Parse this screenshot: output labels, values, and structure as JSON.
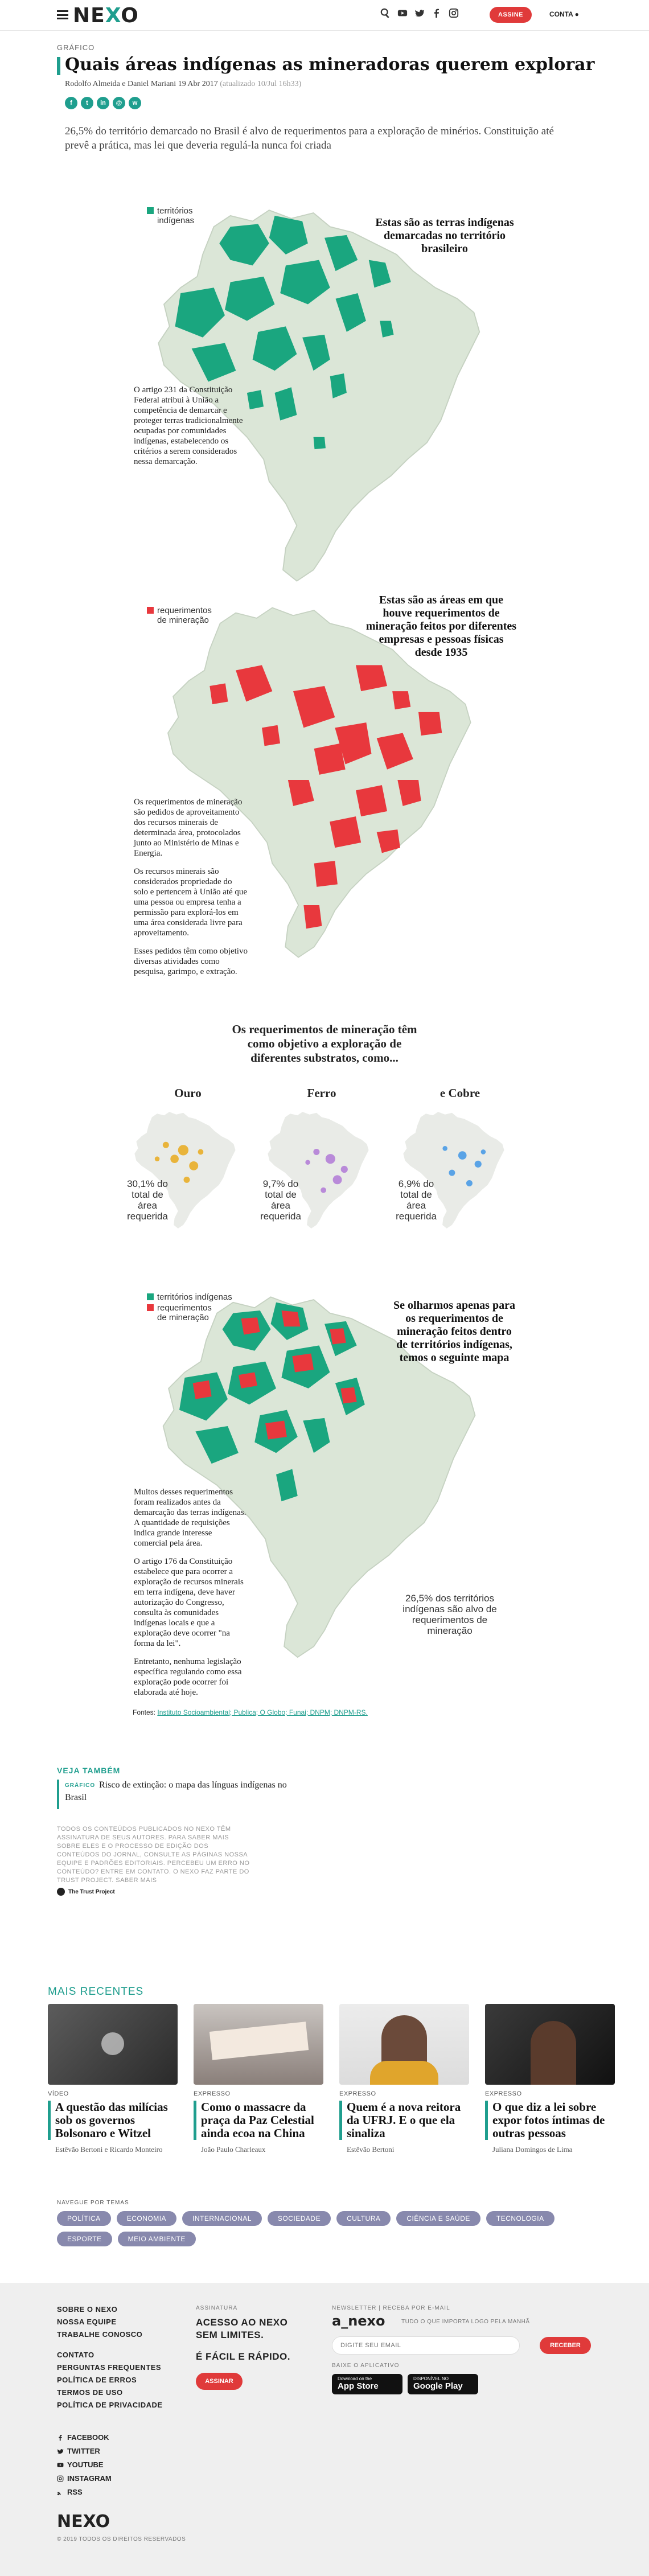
{
  "header": {
    "logo": "NEXO",
    "subscribe_label": "ASSINE",
    "account_label": "CONTA",
    "icons": [
      "menu-icon",
      "search-icon",
      "youtube-icon",
      "twitter-icon",
      "facebook-icon",
      "instagram-icon",
      "user-icon"
    ]
  },
  "article": {
    "kicker": "GRÁFICO",
    "title": "Quais áreas indígenas as mineradoras querem explorar",
    "authors": "Rodolfo Almeida e Daniel Mariani",
    "date": "19 Abr 2017",
    "updated": "(atualizado 10/Jul 16h33)",
    "share_icons": [
      "facebook-icon",
      "twitter-icon",
      "linkedin-icon",
      "email-icon",
      "whatsapp-icon"
    ],
    "lede": "26,5% do território demarcado no Brasil é alvo de requerimentos para a exploração de minérios. Constituição até prevê a prática, mas lei que deveria regulá-la nunca foi criada"
  },
  "colors": {
    "accent": "#1f9e8e",
    "indigenous": "#1aa67f",
    "mining": "#e8383d",
    "land": "#dbe6d7",
    "gold": "#e9b43b",
    "iron": "#b98ad9",
    "copper": "#5aa3e6",
    "tag_bg": "#8889ad",
    "button": "#e03a3a"
  },
  "map1": {
    "legend": "territórios indígenas",
    "heading": "Estas são as terras indígenas demarcadas no território brasileiro",
    "note": "O artigo 231 da Constituição Federal atribui à União a competência de demarcar e proteger terras tradicionalmente ocupadas por comunidades indígenas, estabelecendo os critérios a serem considerados nessa demarcação."
  },
  "map2": {
    "legend": "requerimentos de mineração",
    "heading": "Estas são as áreas em que houve requerimentos de mineração feitos por diferentes empresas e pessoas físicas desde 1935",
    "note1": "Os requerimentos de mineração são pedidos de aproveitamento dos recursos minerais de determinada área, protocolados junto ao Ministério de Minas e Energia.",
    "note2": "Os recursos minerais são considerados propriedade do solo e pertencem à União até que uma pessoa ou empresa tenha a permissão para explorá-los em uma área considerada livre para aproveitamento.",
    "note3": "Esses pedidos têm como objetivo diversas atividades como pesquisa, garimpo, e extração."
  },
  "substrates": {
    "heading": "Os requerimentos de mineração têm como objetivo a exploração de diferentes substratos, como...",
    "items": [
      {
        "name": "Ouro",
        "pct": "30,1% do total de área requerida"
      },
      {
        "name": "Ferro",
        "pct": "9,7% do total de área requerida"
      },
      {
        "name": "e Cobre",
        "pct": "6,9% do total de área requerida"
      }
    ]
  },
  "map3": {
    "legend_a": "territórios indígenas",
    "legend_b": "requerimentos de mineração",
    "heading": "Se olharmos apenas para os requerimentos de mineração feitos dentro de territórios indígenas, temos o seguinte mapa",
    "note1": "Muitos desses requerimentos foram realizados antes da demarcação das terras indígenas. A quantidade de requisições indica grande interesse comercial pela área.",
    "note2": "O artigo 176 da Constituição estabelece que para ocorrer a exploração de recursos minerais em terra indígena, deve haver autorização do Congresso, consulta às comunidades indígenas locais e que a exploração deve ocorrer \"na forma da lei\".",
    "note3": "Entretanto, nenhuma legislação específica regulando como essa exploração pode ocorrer foi elaborada até hoje.",
    "stat": "26,5% dos territórios indígenas são alvo de requerimentos de mineração"
  },
  "sources": {
    "label": "Fontes:",
    "links": "Instituto Socioambiental; Publica; O Globo; Funai; DNPM; DNPM-RS."
  },
  "veja_tambem": {
    "heading": "VEJA TAMBÉM",
    "kicker": "GRÁFICO",
    "title": "Risco de extinção: o mapa das línguas indígenas no Brasil"
  },
  "fine_print": "TODOS OS CONTEÚDOS PUBLICADOS NO NEXO TÊM ASSINATURA DE SEUS AUTORES. PARA SABER MAIS SOBRE ELES E O PROCESSO DE EDIÇÃO DOS CONTEÚDOS DO JORNAL, CONSULTE AS PÁGINAS NOSSA EQUIPE E PADRÕES EDITORIAIS. PERCEBEU UM ERRO NO CONTEÚDO? ENTRE EM CONTATO. O NEXO FAZ PARTE DO TRUST PROJECT. SABER MAIS",
  "trust_label": "The Trust Project",
  "mais_recentes": {
    "heading": "MAIS RECENTES",
    "cards": [
      {
        "cat": "VÍDEO",
        "title": "A questão das milícias sob os governos Bolsonaro e Witzel",
        "author": "Estêvão Bertoni e Ricardo Monteiro"
      },
      {
        "cat": "EXPRESSO",
        "title": "Como o massacre da praça da Paz Celestial ainda ecoa na China",
        "author": "João Paulo Charleaux"
      },
      {
        "cat": "EXPRESSO",
        "title": "Quem é a nova reitora da UFRJ. E o que ela sinaliza",
        "author": "Estêvão Bertoni"
      },
      {
        "cat": "EXPRESSO",
        "title": "O que diz a lei sobre expor fotos íntimas de outras pessoas",
        "author": "Juliana Domingos de Lima"
      }
    ]
  },
  "topics": {
    "heading": "NAVEGUE POR TEMAS",
    "items": [
      "POLÍTICA",
      "ECONOMIA",
      "INTERNACIONAL",
      "SOCIEDADE",
      "CULTURA",
      "CIÊNCIA E SAÚDE",
      "TECNOLOGIA",
      "ESPORTE",
      "MEIO AMBIENTE"
    ]
  },
  "footer": {
    "links_a": [
      "SOBRE O NEXO",
      "NOSSA EQUIPE",
      "TRABALHE CONOSCO"
    ],
    "links_b": [
      "CONTATO",
      "PERGUNTAS FREQUENTES",
      "POLÍTICA DE ERROS",
      "TERMOS DE USO",
      "POLÍTICA DE PRIVACIDADE"
    ],
    "social": [
      "FACEBOOK",
      "TWITTER",
      "YOUTUBE",
      "INSTAGRAM",
      "RSS"
    ],
    "sub_heading": "ASSINATURA",
    "sub_text": "ACESSO AO NEXO SEM LIMITES.",
    "sub_text2": "É FÁCIL E RÁPIDO.",
    "sub_button": "ASSINAR",
    "nl_heading": "NEWSLETTER | RECEBA POR E-MAIL",
    "nl_logo": "a_nexo",
    "nl_tagline": "TUDO O QUE IMPORTA LOGO PELA MANHÃ",
    "nl_placeholder": "DIGITE SEU EMAIL",
    "nl_button": "RECEBER",
    "app_heading": "BAIXE O APLICATIVO",
    "app_store_small": "Download on the",
    "app_store": "App Store",
    "play_small": "DISPONÍVEL NO",
    "play": "Google Play",
    "logo": "NEXO",
    "copyright": "© 2019 TODOS OS DIREITOS RESERVADOS"
  }
}
